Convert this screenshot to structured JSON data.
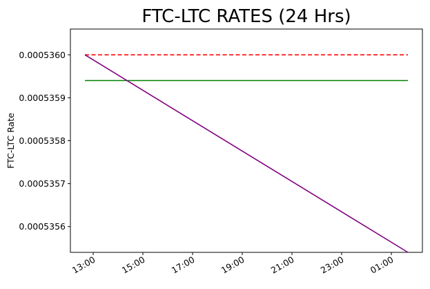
{
  "chart_data": {
    "type": "line",
    "title": "FTC-LTC RATES (24 Hrs)",
    "xlabel": "",
    "ylabel": "FTC-LTC Rate",
    "x_tick_labels": [
      "13:00",
      "15:00",
      "17:00",
      "19:00",
      "21:00",
      "23:00",
      "01:00"
    ],
    "y_tick_labels": [
      "0.0005356",
      "0.0005357",
      "0.0005358",
      "0.0005359",
      "0.0005360"
    ],
    "y_ticks": [
      0.0005356,
      0.0005357,
      0.0005358,
      0.0005359,
      0.000536
    ],
    "ylim": [
      0.00053554,
      0.00053606
    ],
    "grid": false,
    "series": [
      {
        "color": "#ff0000",
        "style": "dashed",
        "x": [
          "12:40",
          "01:40"
        ],
        "y": [
          0.000536,
          0.000536
        ]
      },
      {
        "color": "#008000",
        "style": "solid",
        "x": [
          "12:40",
          "01:40"
        ],
        "y": [
          0.00053594,
          0.00053594
        ]
      },
      {
        "color": "#800080",
        "style": "solid",
        "x": [
          "12:40",
          "01:40"
        ],
        "y": [
          0.000536,
          0.00053554
        ]
      }
    ]
  }
}
